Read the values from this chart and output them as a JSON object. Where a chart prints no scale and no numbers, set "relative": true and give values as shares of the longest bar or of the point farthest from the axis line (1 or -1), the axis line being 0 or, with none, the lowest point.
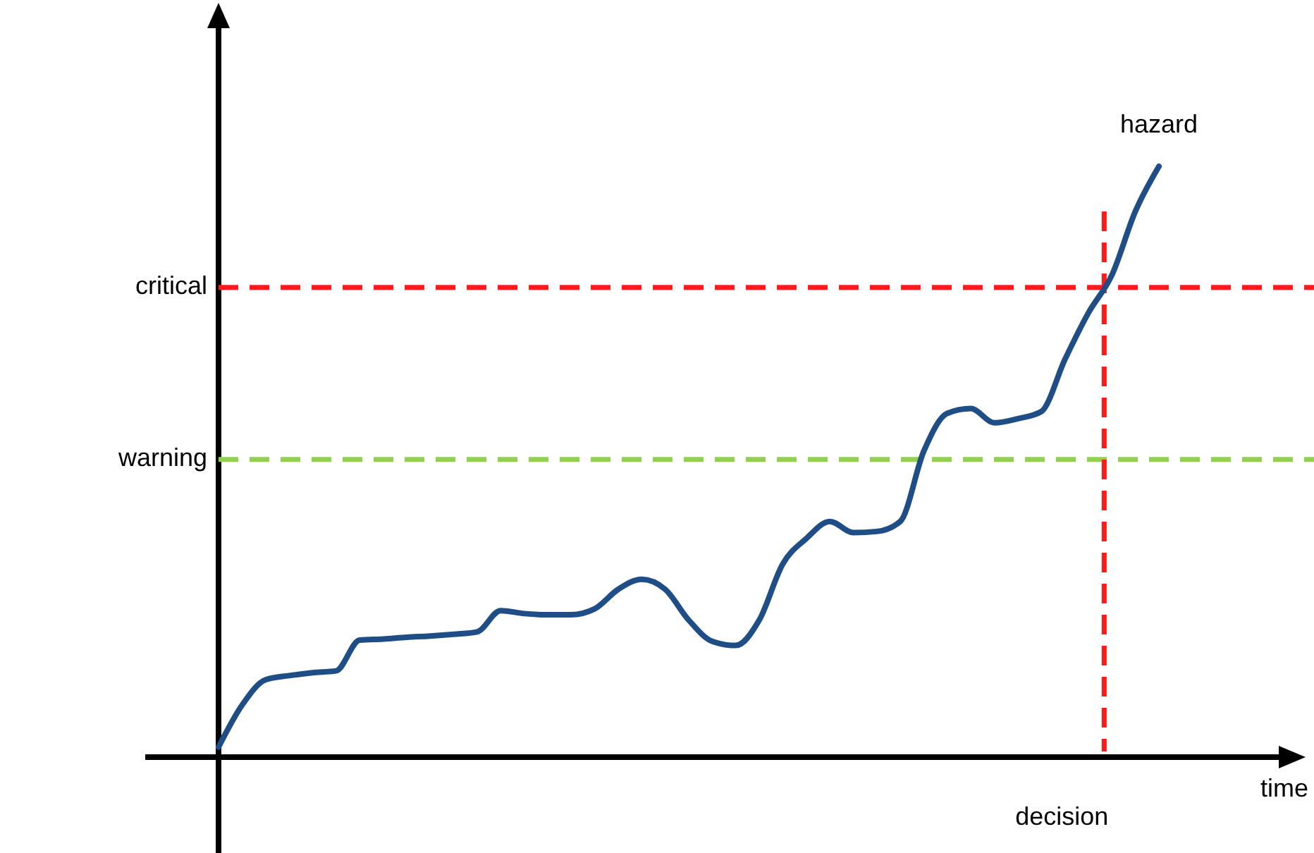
{
  "chart_data": {
    "type": "line",
    "relative": true,
    "xlabel": "time",
    "categories": [
      null,
      null,
      null,
      null,
      null,
      null,
      null,
      null,
      null,
      null,
      null,
      null,
      null,
      null,
      null,
      null,
      null,
      null,
      null,
      null,
      null,
      null,
      null,
      null,
      null,
      null,
      null,
      null,
      null,
      null,
      null,
      null,
      null,
      null,
      null,
      null,
      null,
      null,
      null,
      null,
      null
    ],
    "series": [
      {
        "color": "#1f4e87",
        "values": [
          0.017,
          0.088,
          0.131,
          0.138,
          0.143,
          0.146,
          0.198,
          0.2,
          0.203,
          0.205,
          0.208,
          0.212,
          0.248,
          0.243,
          0.241,
          0.241,
          0.251,
          0.284,
          0.301,
          0.284,
          0.232,
          0.196,
          0.189,
          0.232,
          0.327,
          0.37,
          0.399,
          0.38,
          0.382,
          0.399,
          0.518,
          0.582,
          0.59,
          0.566,
          0.573,
          0.585,
          0.673,
          0.752,
          0.816,
          0.924,
          1
        ]
      }
    ],
    "ref_lines": [
      {
        "axis": "y",
        "value": 0.795,
        "label": "critical",
        "color": "#ff1a1a",
        "line_style": "dashed"
      },
      {
        "axis": "y",
        "value": 0.504,
        "label": "warning",
        "color": "#92d050",
        "line_style": "dashed"
      }
    ],
    "annotations": [
      "hazard",
      "decision"
    ]
  }
}
